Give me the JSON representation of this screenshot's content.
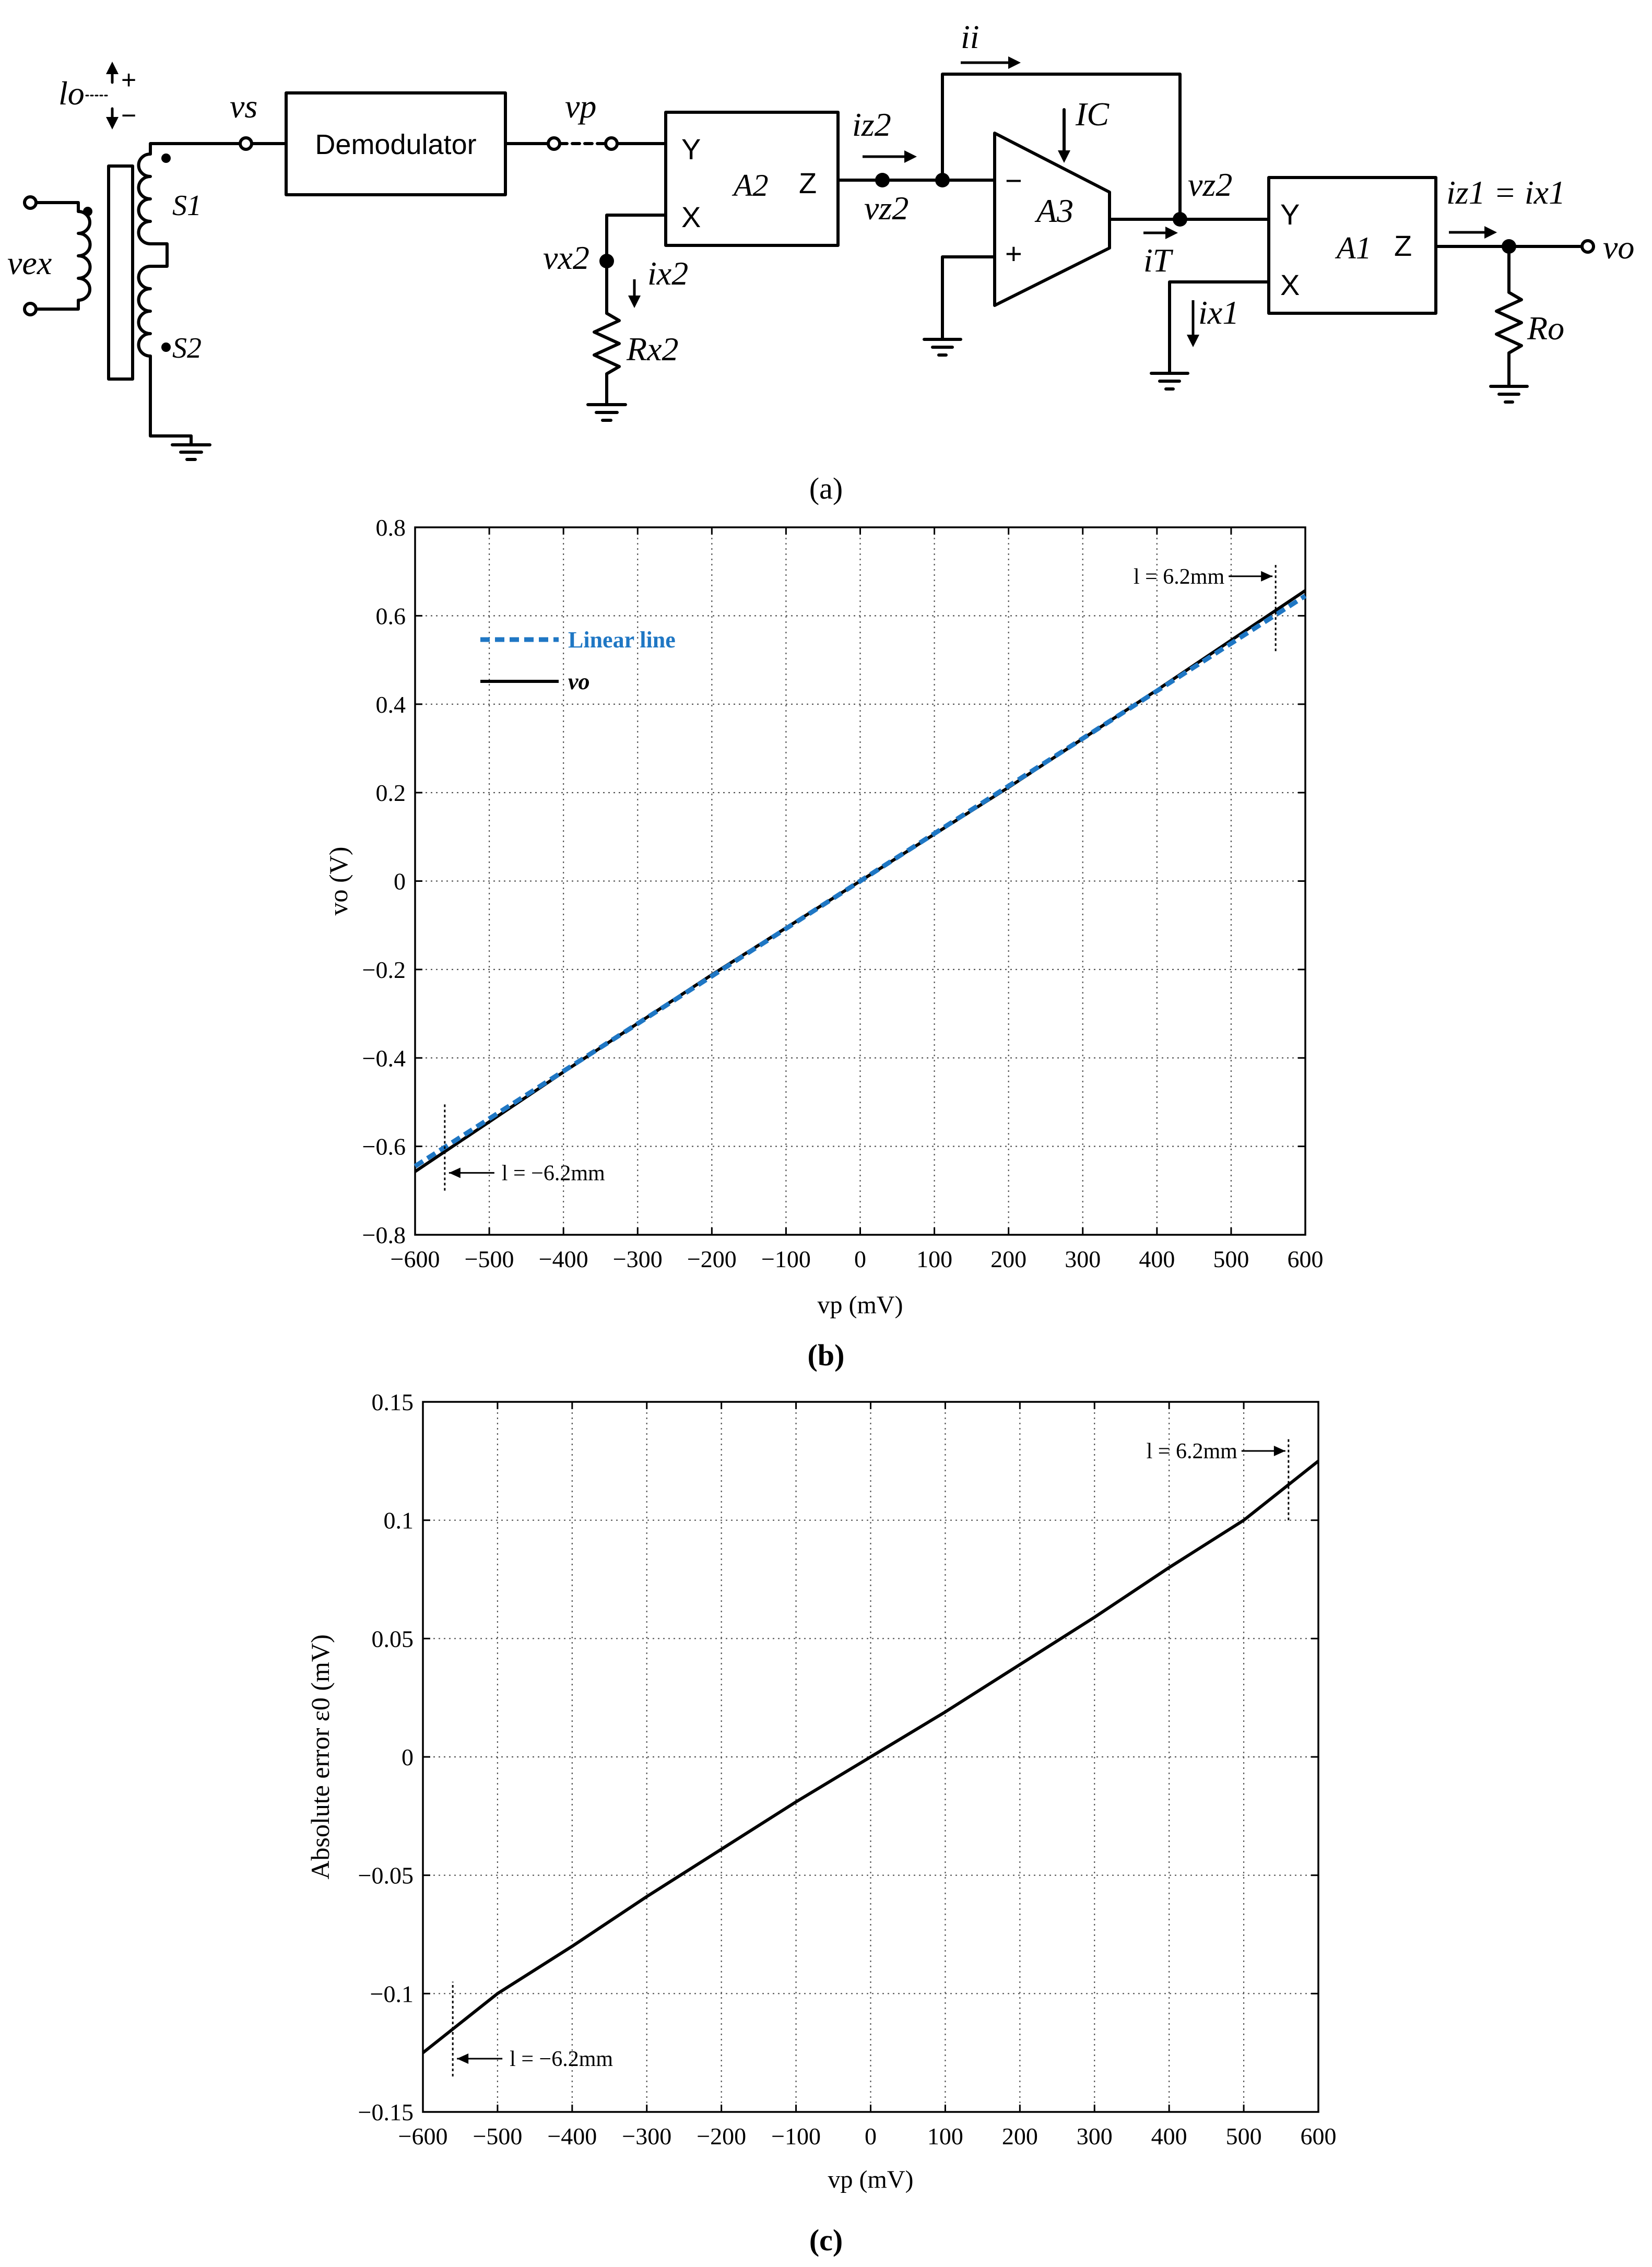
{
  "panel_a": {
    "caption": "(a)",
    "labels": {
      "vex": "vex",
      "lo": "lo",
      "plus": "+",
      "minus": "−",
      "vs": "vs",
      "s1": "S1",
      "s2": "S2",
      "demodulator": "Demodulator",
      "vp": "vp",
      "y": "Y",
      "x": "X",
      "z": "Z",
      "a2": "A2",
      "iz2": "iz2",
      "vz2": "vz2",
      "vx2": "vx2",
      "ix2": "ix2",
      "rx2": "Rx2",
      "ii": "ii",
      "ic": "IC",
      "a3": "A3",
      "op_minus": "−",
      "op_plus": "+",
      "it": "iT",
      "a1": "A1",
      "ix1": "ix1",
      "iz1_eq": "iz1 = ix1",
      "vo": "vo",
      "ro": "Ro"
    }
  },
  "chart_data": [
    {
      "type": "line",
      "caption": "(b)",
      "xlabel": "vp (mV)",
      "ylabel": "vo (V)",
      "xlim": [
        -600,
        600
      ],
      "ylim": [
        -0.8,
        0.8
      ],
      "xticks": [
        -600,
        -500,
        -400,
        -300,
        -200,
        -100,
        0,
        100,
        200,
        300,
        400,
        500,
        600
      ],
      "xtick_labels": [
        "−600",
        "−500",
        "−400",
        "−300",
        "−200",
        "−100",
        "0",
        "100",
        "200",
        "300",
        "400",
        "500",
        "600"
      ],
      "yticks": [
        0.8,
        0.6,
        0.4,
        0.2,
        0,
        -0.2,
        -0.4,
        -0.6,
        -0.8
      ],
      "ytick_labels": [
        "0.8",
        "0.6",
        "0.4",
        "0.2",
        "0",
        "−0.2",
        "−0.4",
        "−0.6",
        "−0.8"
      ],
      "grid": true,
      "legend_position": "top-left",
      "series": [
        {
          "name": "Linear line",
          "color": "#1f77c4",
          "style": "dashed",
          "x": [
            -600,
            600
          ],
          "y": [
            -0.645,
            0.645
          ]
        },
        {
          "name": "vo",
          "color": "#000000",
          "style": "solid",
          "x": [
            -600,
            -400,
            -200,
            0,
            200,
            400,
            600
          ],
          "y": [
            -0.657,
            -0.432,
            -0.212,
            0,
            0.212,
            0.432,
            0.657
          ]
        }
      ],
      "annotations": [
        {
          "text": "l = 6.2mm",
          "x": 560,
          "y": 0.66,
          "marker_ylim": [
            0.52,
            0.72
          ],
          "arrow": "right"
        },
        {
          "text": "l = −6.2mm",
          "x": -560,
          "y": -0.67,
          "marker_ylim": [
            -0.7,
            -0.5
          ],
          "arrow": "left"
        }
      ]
    },
    {
      "type": "line",
      "caption": "(c)",
      "xlabel": "vp (mV)",
      "ylabel": "Absolute error ε0 (mV)",
      "xlim": [
        -600,
        600
      ],
      "ylim": [
        -0.15,
        0.15
      ],
      "xticks": [
        -600,
        -500,
        -400,
        -300,
        -200,
        -100,
        0,
        100,
        200,
        300,
        400,
        500,
        600
      ],
      "xtick_labels": [
        "−600",
        "−500",
        "−400",
        "−300",
        "−200",
        "−100",
        "0",
        "100",
        "200",
        "300",
        "400",
        "500",
        "600"
      ],
      "yticks": [
        0.15,
        0.1,
        0.05,
        0,
        -0.05,
        -0.1,
        -0.15
      ],
      "ytick_labels": [
        "0.15",
        "0.1",
        "0.05",
        "0",
        "−0.05",
        "−0.1",
        "−0.15"
      ],
      "grid": true,
      "series": [
        {
          "name": "",
          "color": "#000000",
          "style": "solid",
          "x": [
            -600,
            -500,
            -400,
            -300,
            -200,
            -100,
            0,
            100,
            200,
            300,
            400,
            500,
            600
          ],
          "y": [
            -0.125,
            -0.1,
            -0.08,
            -0.059,
            -0.039,
            -0.019,
            0,
            0.019,
            0.039,
            0.059,
            0.08,
            0.1,
            0.125
          ]
        }
      ],
      "annotations": [
        {
          "text": "l = 6.2mm",
          "x": 560,
          "y": 0.125,
          "marker_ylim": [
            0.1,
            0.135
          ],
          "arrow": "right"
        },
        {
          "text": "l = −6.2mm",
          "x": -560,
          "y": -0.125,
          "marker_ylim": [
            -0.135,
            -0.095
          ],
          "arrow": "left"
        }
      ]
    }
  ]
}
